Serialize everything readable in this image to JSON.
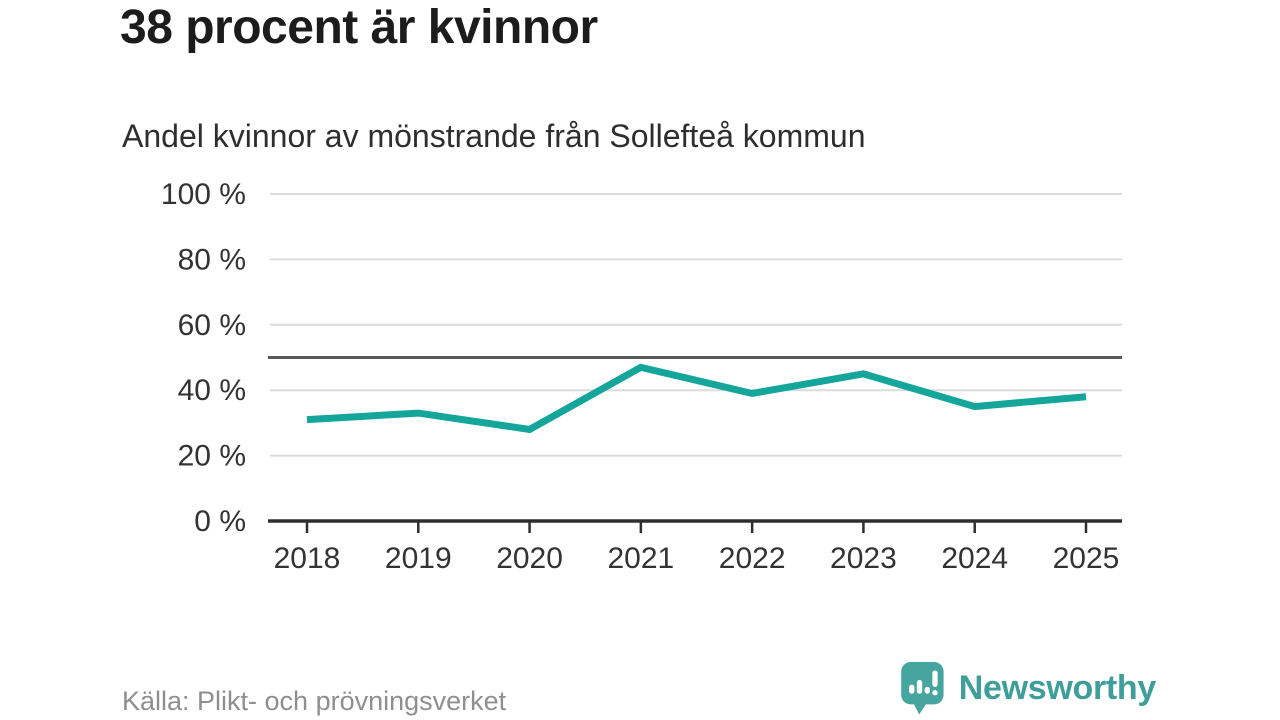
{
  "title": "38 procent är kvinnor",
  "subtitle": "Andel kvinnor av mönstrande från Sollefteå kommun",
  "source": "Källa: Plikt- och prövningsverket",
  "logo": {
    "text": "Newsworthy",
    "icon": "newsworthy-speech-bubble-bar-chart-icon",
    "color": "#3f9e99"
  },
  "chart_data": {
    "type": "line",
    "title": "38 procent är kvinnor",
    "subtitle": "Andel kvinnor av mönstrande från Sollefteå kommun",
    "x": [
      2018,
      2019,
      2020,
      2021,
      2022,
      2023,
      2024,
      2025
    ],
    "series": [
      {
        "name": "Andel kvinnor av mönstrande",
        "values": [
          31,
          33,
          28,
          47,
          39,
          45,
          35,
          38
        ]
      }
    ],
    "unit": "%",
    "ylim": [
      0,
      100
    ],
    "yticks": [
      0,
      20,
      40,
      60,
      80,
      100
    ],
    "ytick_format": "{v} %",
    "reference_line": 50,
    "grid": true,
    "legend_position": "none",
    "line_color": "#14a59b",
    "grid_color": "#dcdcdc",
    "reference_color": "#59595b",
    "axis_color": "#2e2e2e",
    "label_color": "#333333"
  }
}
